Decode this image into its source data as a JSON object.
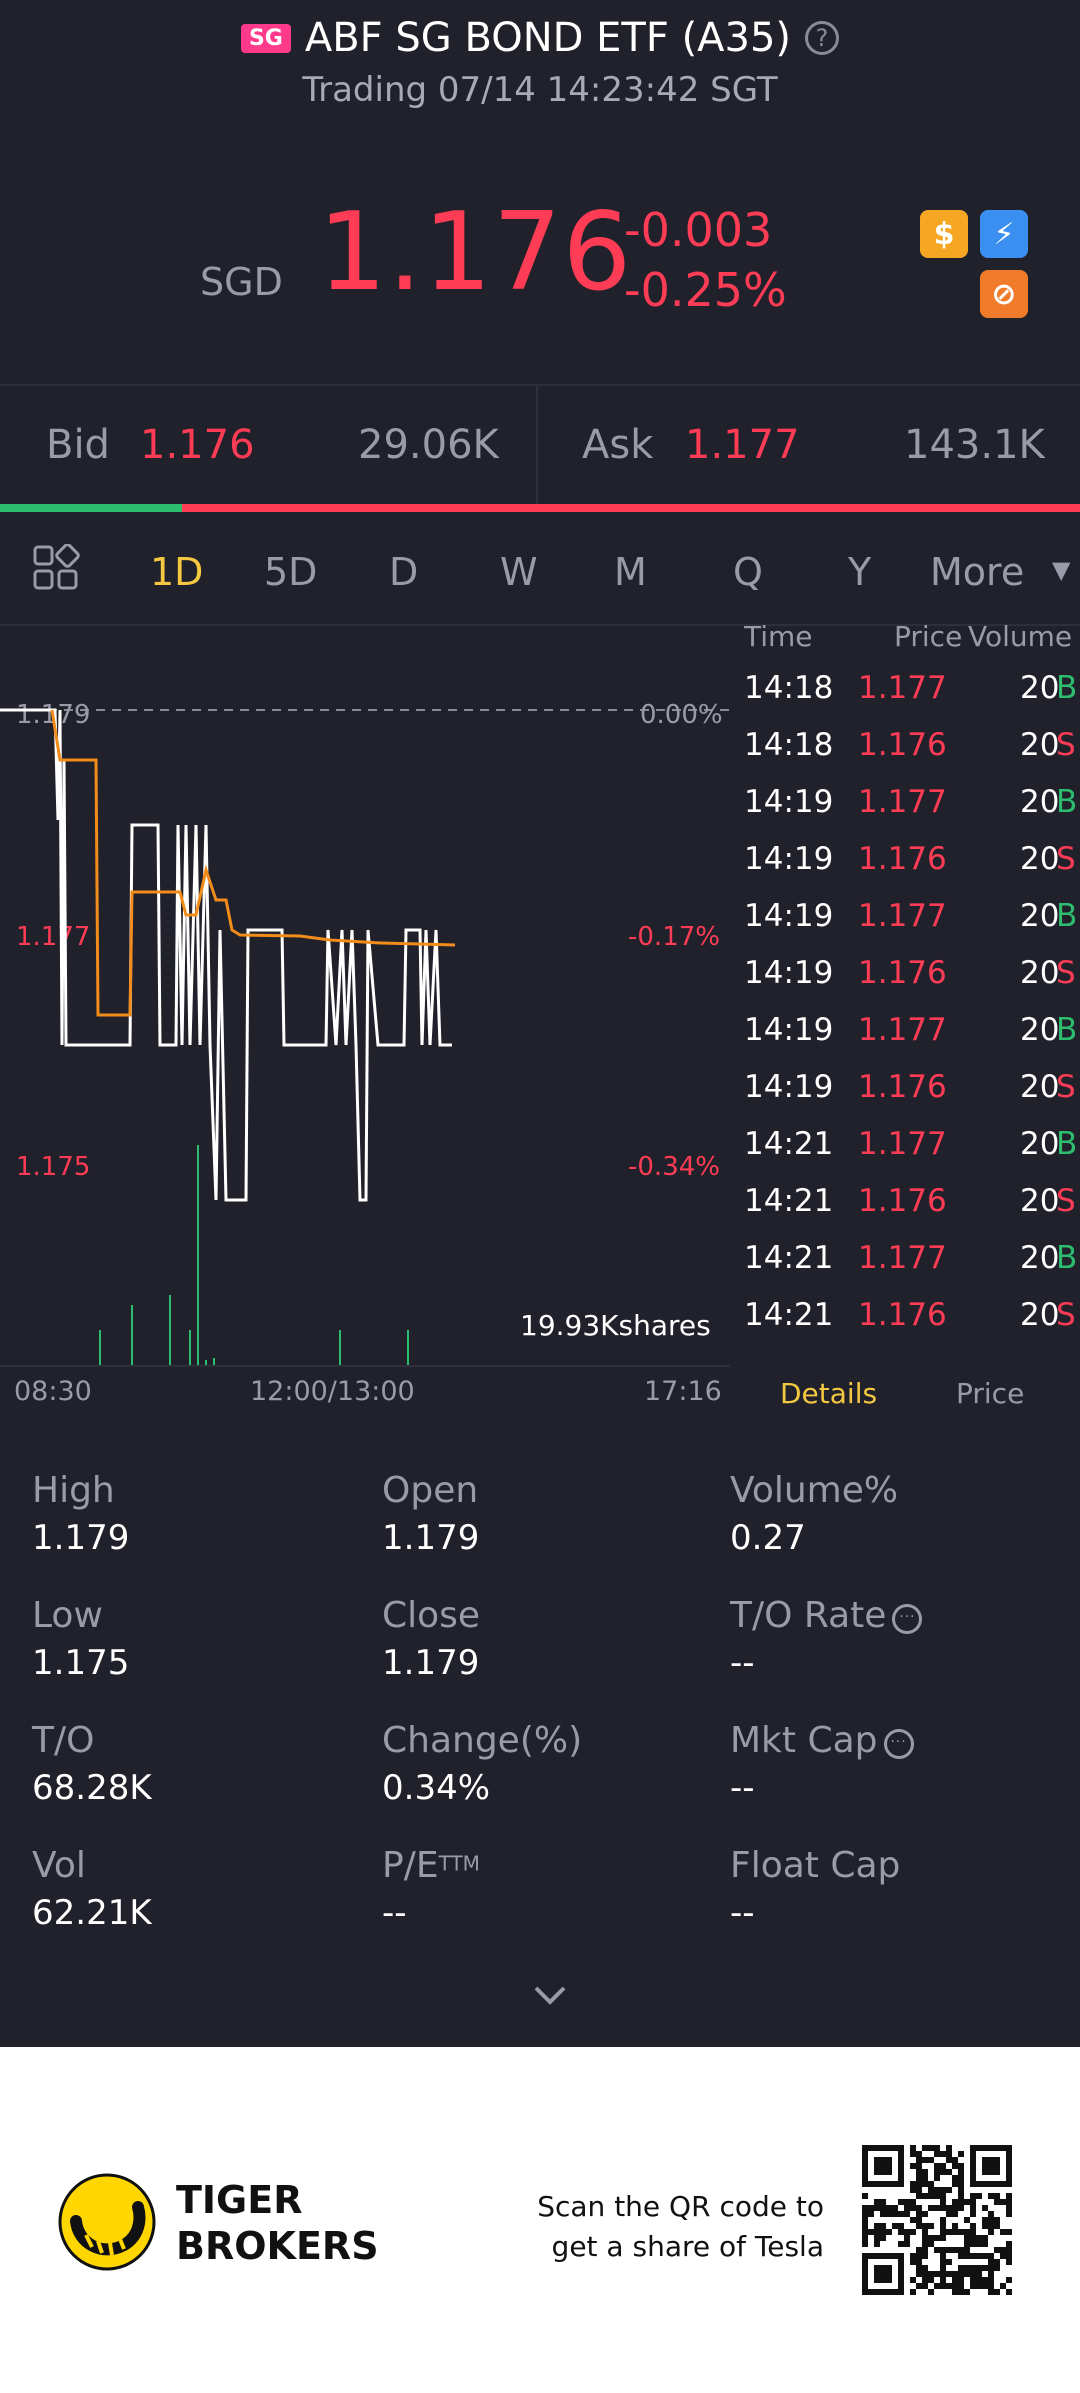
{
  "header": {
    "badge": "SG",
    "title": "ABF SG BOND ETF (A35)",
    "help_icon": "question-circle-icon",
    "status": "Trading 07/14 14:23:42 SGT"
  },
  "quote": {
    "currency": "SGD",
    "price": "1.176",
    "change": "-0.003",
    "change_pct": "-0.25%",
    "icons": [
      "dollar-icon",
      "lightning-1-icon",
      "orange-badge-icon"
    ]
  },
  "bidask": {
    "bid_label": "Bid",
    "bid_price": "1.176",
    "bid_size": "29.06K",
    "ask_label": "Ask",
    "ask_price": "1.177",
    "ask_size": "143.1K",
    "bid_ratio": 0.17
  },
  "tabs": {
    "layout_icon": "grid-layout-icon",
    "items": [
      "1D",
      "5D",
      "D",
      "W",
      "M",
      "Q",
      "Y",
      "More"
    ],
    "active": "1D"
  },
  "chart_data": {
    "type": "line",
    "series": [
      {
        "values": [
          1.179,
          1.177,
          1.178,
          1.176,
          1.177,
          1.175,
          1.177,
          1.176,
          1.177,
          1.176
        ]
      },
      {
        "values": [
          1.179,
          1.178,
          1.1765,
          1.1775,
          1.1772,
          1.1771,
          1.177,
          1.177
        ]
      }
    ],
    "price_labels": [
      "1.179",
      "1.177",
      "1.175"
    ],
    "pct_labels": [
      "0.00%",
      "-0.17%",
      "-0.34%"
    ],
    "volume_label": "19.93Kshares",
    "x_labels": [
      "08:30",
      "12:00/13:00",
      "17:16"
    ],
    "ylim": [
      1.175,
      1.179
    ],
    "colors": {
      "price": "#ffffff",
      "avg": "#f28c1a",
      "volume": "#2dbd6e",
      "down": "#ff3c55"
    }
  },
  "ticks": {
    "headers": [
      "Time",
      "Price",
      "Volume"
    ],
    "rows": [
      {
        "time": "14:18",
        "price": "1.177",
        "vol": "20",
        "side": "B"
      },
      {
        "time": "14:18",
        "price": "1.176",
        "vol": "20",
        "side": "S"
      },
      {
        "time": "14:19",
        "price": "1.177",
        "vol": "20",
        "side": "B"
      },
      {
        "time": "14:19",
        "price": "1.176",
        "vol": "20",
        "side": "S"
      },
      {
        "time": "14:19",
        "price": "1.177",
        "vol": "20",
        "side": "B"
      },
      {
        "time": "14:19",
        "price": "1.176",
        "vol": "20",
        "side": "S"
      },
      {
        "time": "14:19",
        "price": "1.177",
        "vol": "20",
        "side": "B"
      },
      {
        "time": "14:19",
        "price": "1.176",
        "vol": "20",
        "side": "S"
      },
      {
        "time": "14:21",
        "price": "1.177",
        "vol": "20",
        "side": "B"
      },
      {
        "time": "14:21",
        "price": "1.176",
        "vol": "20",
        "side": "S"
      },
      {
        "time": "14:21",
        "price": "1.177",
        "vol": "20",
        "side": "B"
      },
      {
        "time": "14:21",
        "price": "1.176",
        "vol": "20",
        "side": "S"
      }
    ],
    "tab_details": "Details",
    "tab_price": "Price"
  },
  "stats": [
    {
      "label": "High",
      "value": "1.179"
    },
    {
      "label": "Open",
      "value": "1.179"
    },
    {
      "label": "Volume%",
      "value": "0.27"
    },
    {
      "label": "Low",
      "value": "1.175"
    },
    {
      "label": "Close",
      "value": "1.179"
    },
    {
      "label": "T/O Rate",
      "value": "--"
    },
    {
      "label": "T/O",
      "value": "68.28K"
    },
    {
      "label": "Change(%)",
      "value": "0.34%"
    },
    {
      "label": "Mkt Cap",
      "value": "--"
    },
    {
      "label": "Vol",
      "value": "62.21K"
    },
    {
      "label": "P/E",
      "value": "--"
    },
    {
      "label": "Float Cap",
      "value": "--"
    }
  ],
  "pe_superscript": "TTM",
  "footer": {
    "brand_line1": "TIGER",
    "brand_line2": "BROKERS",
    "cta_line1": "Scan the QR code to",
    "cta_line2": "get a share of Tesla"
  }
}
